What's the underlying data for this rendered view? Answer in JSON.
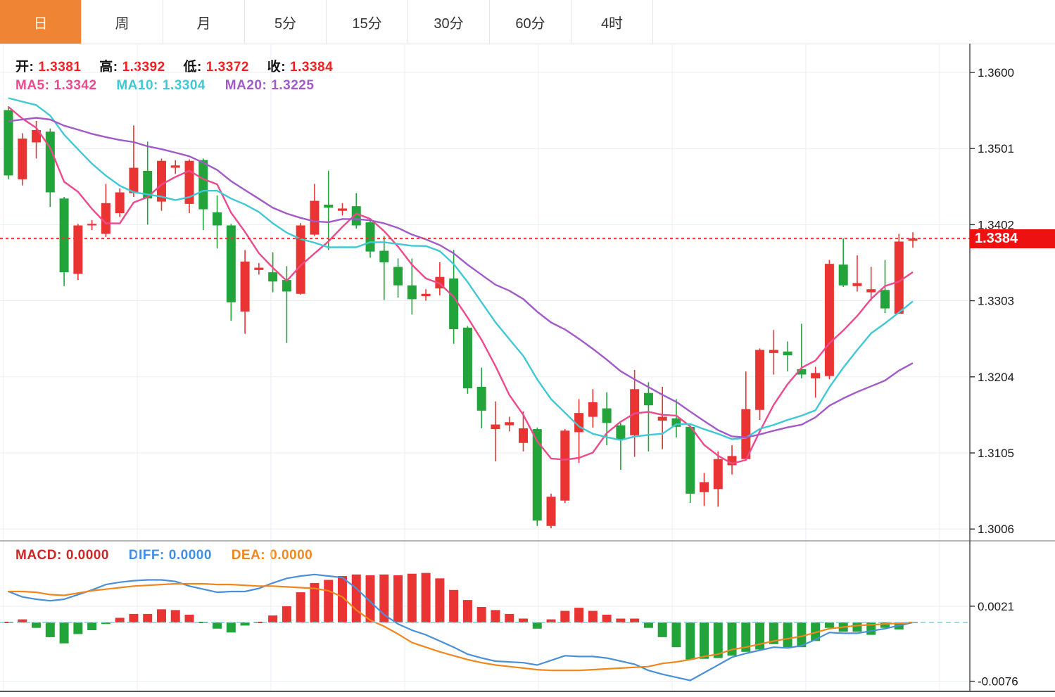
{
  "tabs": {
    "items": [
      {
        "label": "日",
        "active": true
      },
      {
        "label": "周",
        "active": false
      },
      {
        "label": "月",
        "active": false
      },
      {
        "label": "5分",
        "active": false
      },
      {
        "label": "15分",
        "active": false
      },
      {
        "label": "30分",
        "active": false
      },
      {
        "label": "60分",
        "active": false
      },
      {
        "label": "4时",
        "active": false
      }
    ]
  },
  "ohlc_bar": {
    "open_label": "开:",
    "open": "1.3381",
    "high_label": "高:",
    "high": "1.3392",
    "low_label": "低:",
    "low": "1.3372",
    "close_label": "收:",
    "close": "1.3384"
  },
  "ma_bar": {
    "ma5_label": "MA5:",
    "ma5": "1.3342",
    "ma10_label": "MA10:",
    "ma10": "1.3304",
    "ma20_label": "MA20:",
    "ma20": "1.3225"
  },
  "macd_bar": {
    "macd_label": "MACD:",
    "macd": "0.0000",
    "diff_label": "DIFF:",
    "diff": "0.0000",
    "dea_label": "DEA:",
    "dea": "0.0000"
  },
  "price_badge": {
    "label": "1.3384"
  },
  "colors": {
    "up": "#ea3434",
    "down": "#22a43a",
    "ma5": "#ed4a8d",
    "ma10": "#41c8d5",
    "ma20": "#a25ac8",
    "diff": "#4a90d8",
    "dea": "#f0861c",
    "tab_active_bg": "#ee8434",
    "badge_bg": "#ee1111",
    "dotted_line": "#f23333",
    "zero_dash": "#7ed0da",
    "grid": "#e9eef5",
    "ohlc_value": "#ee2222",
    "macd_label": "#cf2525",
    "diff_label": "#3f8fe8",
    "dea_label": "#f0861c"
  },
  "chart_data": {
    "type": "candlestick-with-macd",
    "title": "",
    "price_axis_ticks": [
      "1.3600",
      "1.3501",
      "1.3402",
      "1.3303",
      "1.3204",
      "1.3105",
      "1.3006"
    ],
    "macd_axis_ticks": [
      "0.0021",
      "-0.0076"
    ],
    "last_price": 1.3384,
    "price_range": [
      1.3006,
      1.36
    ],
    "macd_range": [
      -0.0076,
      0.0021
    ],
    "ma_periods": [
      5,
      10,
      20
    ],
    "ma_seed_closes_estimated": [
      1.347,
      1.348,
      1.349,
      1.35,
      1.3505,
      1.351,
      1.3515,
      1.352,
      1.353,
      1.3545,
      1.356,
      1.357,
      1.358,
      1.3588,
      1.3592,
      1.359,
      1.3585,
      1.3575,
      1.356
    ],
    "candles_ohlc": [
      [
        1.3551,
        1.3556,
        1.3461,
        1.3466
      ],
      [
        1.3461,
        1.3521,
        1.3453,
        1.3514
      ],
      [
        1.3509,
        1.3537,
        1.3488,
        1.3525
      ],
      [
        1.3523,
        1.3527,
        1.3425,
        1.3444
      ],
      [
        1.3436,
        1.3438,
        1.3322,
        1.334
      ],
      [
        1.3338,
        1.3403,
        1.333,
        1.3401
      ],
      [
        1.3401,
        1.3408,
        1.3395,
        1.3403
      ],
      [
        1.339,
        1.3455,
        1.3386,
        1.343
      ],
      [
        1.3417,
        1.3449,
        1.3412,
        1.3444
      ],
      [
        1.3443,
        1.3531,
        1.3438,
        1.3476
      ],
      [
        1.3472,
        1.351,
        1.3402,
        1.3436
      ],
      [
        1.3432,
        1.3488,
        1.342,
        1.3485
      ],
      [
        1.3476,
        1.3486,
        1.3468,
        1.3479
      ],
      [
        1.3429,
        1.3487,
        1.3417,
        1.3485
      ],
      [
        1.3486,
        1.3488,
        1.3395,
        1.3422
      ],
      [
        1.3418,
        1.344,
        1.3371,
        1.3401
      ],
      [
        1.3401,
        1.3403,
        1.3277,
        1.3301
      ],
      [
        1.3289,
        1.3369,
        1.326,
        1.3354
      ],
      [
        1.3343,
        1.3352,
        1.3337,
        1.3346
      ],
      [
        1.334,
        1.3366,
        1.3314,
        1.3328
      ],
      [
        1.333,
        1.3348,
        1.3248,
        1.3315
      ],
      [
        1.3312,
        1.3404,
        1.3311,
        1.3401
      ],
      [
        1.3389,
        1.3455,
        1.3387,
        1.3433
      ],
      [
        1.3428,
        1.3472,
        1.3369,
        1.3424
      ],
      [
        1.342,
        1.343,
        1.3414,
        1.3423
      ],
      [
        1.3426,
        1.3443,
        1.3397,
        1.3401
      ],
      [
        1.3405,
        1.3407,
        1.3359,
        1.3367
      ],
      [
        1.3368,
        1.3387,
        1.3304,
        1.3353
      ],
      [
        1.3347,
        1.3358,
        1.3307,
        1.3323
      ],
      [
        1.3323,
        1.3358,
        1.3285,
        1.3305
      ],
      [
        1.3309,
        1.3318,
        1.3303,
        1.3312
      ],
      [
        1.3319,
        1.3353,
        1.331,
        1.3334
      ],
      [
        1.3332,
        1.3369,
        1.3247,
        1.3266
      ],
      [
        1.3268,
        1.327,
        1.3182,
        1.3189
      ],
      [
        1.3191,
        1.3216,
        1.3137,
        1.316
      ],
      [
        1.3136,
        1.3172,
        1.3094,
        1.3142
      ],
      [
        1.3141,
        1.3152,
        1.3133,
        1.3145
      ],
      [
        1.3118,
        1.3159,
        1.3107,
        1.3137
      ],
      [
        1.3136,
        1.3138,
        1.301,
        1.3017
      ],
      [
        1.301,
        1.3052,
        1.3007,
        1.3048
      ],
      [
        1.3043,
        1.3136,
        1.304,
        1.3134
      ],
      [
        1.3132,
        1.3175,
        1.3092,
        1.3157
      ],
      [
        1.3152,
        1.3188,
        1.3138,
        1.3171
      ],
      [
        1.3163,
        1.3184,
        1.3115,
        1.3144
      ],
      [
        1.3141,
        1.3144,
        1.3083,
        1.3122
      ],
      [
        1.3128,
        1.3213,
        1.31,
        1.3188
      ],
      [
        1.3183,
        1.3197,
        1.3107,
        1.3167
      ],
      [
        1.3147,
        1.3191,
        1.311,
        1.3152
      ],
      [
        1.315,
        1.3175,
        1.3125,
        1.3139
      ],
      [
        1.3139,
        1.3141,
        1.304,
        1.3052
      ],
      [
        1.3054,
        1.3079,
        1.3036,
        1.3067
      ],
      [
        1.3058,
        1.3107,
        1.3035,
        1.3097
      ],
      [
        1.3089,
        1.3115,
        1.3077,
        1.3101
      ],
      [
        1.3097,
        1.3211,
        1.3095,
        1.3162
      ],
      [
        1.3161,
        1.3241,
        1.3148,
        1.3239
      ],
      [
        1.3235,
        1.3265,
        1.3207,
        1.3239
      ],
      [
        1.3237,
        1.325,
        1.3211,
        1.3232
      ],
      [
        1.3214,
        1.3273,
        1.3202,
        1.3207
      ],
      [
        1.3202,
        1.3217,
        1.3177,
        1.3209
      ],
      [
        1.3205,
        1.3356,
        1.3201,
        1.3351
      ],
      [
        1.335,
        1.3384,
        1.3321,
        1.3323
      ],
      [
        1.3322,
        1.3362,
        1.3315,
        1.3326
      ],
      [
        1.3314,
        1.3347,
        1.3303,
        1.3318
      ],
      [
        1.3317,
        1.3356,
        1.3287,
        1.3293
      ],
      [
        1.3286,
        1.339,
        1.3286,
        1.338
      ],
      [
        1.3381,
        1.3392,
        1.3372,
        1.3384
      ]
    ],
    "macd_histogram": [
      0.0,
      0.0004,
      -0.0007,
      -0.0019,
      -0.0027,
      -0.0015,
      -0.001,
      -0.0002,
      0.0006,
      0.0011,
      0.0011,
      0.0017,
      0.0016,
      0.001,
      -0.0001,
      -0.0008,
      -0.0013,
      -0.0004,
      0.0,
      0.0009,
      0.0021,
      0.0039,
      0.0051,
      0.0055,
      0.006,
      0.0062,
      0.0061,
      0.0062,
      0.0061,
      0.0063,
      0.0064,
      0.0057,
      0.0042,
      0.0029,
      0.002,
      0.0016,
      0.0011,
      0.0005,
      -0.0008,
      0.0004,
      0.0015,
      0.0019,
      0.0015,
      0.001,
      0.0005,
      0.0005,
      -0.0007,
      -0.0019,
      -0.0032,
      -0.0048,
      -0.0047,
      -0.0046,
      -0.0043,
      -0.0038,
      -0.0035,
      -0.0028,
      -0.0032,
      -0.0032,
      -0.0024,
      -0.0007,
      -0.0012,
      -0.0012,
      -0.0016,
      -0.0007,
      -0.0009,
      0.0
    ],
    "diff_line": [
      0.004,
      0.0033,
      0.003,
      0.0028,
      0.003,
      0.0036,
      0.0042,
      0.0049,
      0.0052,
      0.0054,
      0.0055,
      0.0055,
      0.0053,
      0.0047,
      0.0043,
      0.0039,
      0.004,
      0.004,
      0.0044,
      0.0051,
      0.0057,
      0.006,
      0.0062,
      0.006,
      0.0058,
      0.0044,
      0.0027,
      0.001,
      -0.0002,
      -0.001,
      -0.0016,
      -0.0024,
      -0.0032,
      -0.0041,
      -0.0046,
      -0.005,
      -0.0051,
      -0.0052,
      -0.0055,
      -0.0049,
      -0.0043,
      -0.0044,
      -0.0044,
      -0.0046,
      -0.005,
      -0.0054,
      -0.0062,
      -0.0067,
      -0.0071,
      -0.0075,
      -0.0065,
      -0.0055,
      -0.0045,
      -0.004,
      -0.0036,
      -0.0032,
      -0.0033,
      -0.003,
      -0.0022,
      -0.0013,
      -0.0014,
      -0.0014,
      -0.0011,
      -0.0008,
      -0.0004,
      0.0
    ],
    "dea_line": [
      0.004,
      0.004,
      0.0039,
      0.0036,
      0.0035,
      0.0038,
      0.0041,
      0.0043,
      0.0045,
      0.0047,
      0.0048,
      0.0049,
      0.005,
      0.005,
      0.005,
      0.0049,
      0.0049,
      0.0048,
      0.0047,
      0.0047,
      0.0046,
      0.0045,
      0.0044,
      0.0041,
      0.0033,
      0.0016,
      0.0003,
      -0.0005,
      -0.0015,
      -0.0026,
      -0.0032,
      -0.0038,
      -0.0043,
      -0.0048,
      -0.0052,
      -0.0055,
      -0.0057,
      -0.0059,
      -0.0061,
      -0.0062,
      -0.0062,
      -0.0062,
      -0.0061,
      -0.006,
      -0.0059,
      -0.0058,
      -0.0057,
      -0.0053,
      -0.0051,
      -0.0048,
      -0.0044,
      -0.0041,
      -0.0035,
      -0.0032,
      -0.0028,
      -0.0024,
      -0.0021,
      -0.0018,
      -0.0013,
      -0.0008,
      -0.0006,
      -0.0004,
      -0.0003,
      -0.0002,
      -0.0001,
      0.0
    ]
  }
}
